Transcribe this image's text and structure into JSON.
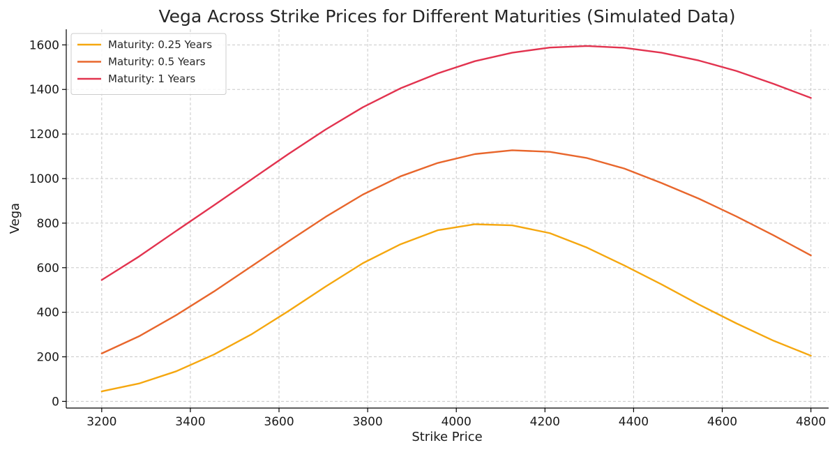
{
  "chart_data": {
    "type": "line",
    "title": "Vega Across Strike Prices for Different Maturities (Simulated Data)",
    "xlabel": "Strike Price",
    "ylabel": "Vega",
    "xlim": [
      3120,
      4840
    ],
    "ylim": [
      -30,
      1670
    ],
    "xticks": [
      3200,
      3400,
      3600,
      3800,
      4000,
      4200,
      4400,
      4600,
      4800
    ],
    "yticks": [
      0,
      200,
      400,
      600,
      800,
      1000,
      1200,
      1400,
      1600
    ],
    "grid": true,
    "legend_position": "top-left",
    "x": [
      3200,
      3284,
      3368,
      3453,
      3537,
      3621,
      3705,
      3789,
      3874,
      3958,
      4042,
      4126,
      4211,
      4295,
      4379,
      4463,
      4547,
      4632,
      4716,
      4800
    ],
    "series": [
      {
        "name": "Maturity: 0.25 Years",
        "color": "#f5a70f",
        "values": [
          45,
          80,
          135,
          210,
          300,
          405,
          515,
          620,
          705,
          768,
          795,
          790,
          755,
          690,
          610,
          525,
          435,
          350,
          272,
          205
        ]
      },
      {
        "name": "Maturity: 0.5 Years",
        "color": "#e8662c",
        "values": [
          215,
          292,
          387,
          493,
          605,
          718,
          828,
          928,
          1010,
          1070,
          1110,
          1127,
          1120,
          1092,
          1045,
          980,
          910,
          830,
          745,
          655
        ]
      },
      {
        "name": "Maturity: 1 Years",
        "color": "#e2334f",
        "values": [
          545,
          650,
          765,
          880,
          995,
          1110,
          1220,
          1320,
          1405,
          1472,
          1527,
          1565,
          1588,
          1595,
          1587,
          1565,
          1530,
          1483,
          1425,
          1362
        ]
      }
    ]
  }
}
